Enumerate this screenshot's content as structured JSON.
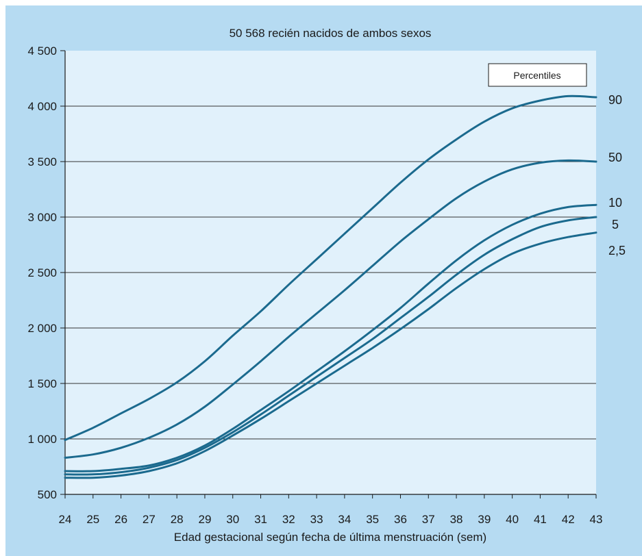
{
  "chart_data": {
    "type": "line",
    "title": "50 568 recién nacidos de ambos sexos",
    "xlabel": "Edad gestacional según fecha de última menstruación (sem)",
    "ylabel": "",
    "legend_title": "Percentiles",
    "legend_placement": "top-right",
    "grid": true,
    "colors": {
      "frame": "#b6dbf2",
      "plot": "#e1f1fb",
      "line": "#1b6a8e",
      "grid": "#333333"
    },
    "xlim": [
      24,
      43
    ],
    "ylim": [
      500,
      4500
    ],
    "x": [
      24,
      25,
      26,
      27,
      28,
      29,
      30,
      31,
      32,
      33,
      34,
      35,
      36,
      37,
      38,
      39,
      40,
      41,
      42,
      43
    ],
    "xticks": [
      "24",
      "25",
      "26",
      "27",
      "28",
      "29",
      "30",
      "31",
      "32",
      "33",
      "34",
      "35",
      "36",
      "37",
      "38",
      "39",
      "40",
      "41",
      "42",
      "43"
    ],
    "yticks": [
      {
        "value": 500,
        "label": "500"
      },
      {
        "value": 1000,
        "label": "1 000"
      },
      {
        "value": 1500,
        "label": "1 500"
      },
      {
        "value": 2000,
        "label": "2 000"
      },
      {
        "value": 2500,
        "label": "2 500"
      },
      {
        "value": 3000,
        "label": "3 000"
      },
      {
        "value": 3500,
        "label": "3 500"
      },
      {
        "value": 4000,
        "label": "4 000"
      },
      {
        "value": 4500,
        "label": "4 500"
      }
    ],
    "series": [
      {
        "name": "90",
        "values": [
          990,
          1100,
          1230,
          1360,
          1510,
          1700,
          1930,
          2150,
          2390,
          2620,
          2850,
          3080,
          3310,
          3520,
          3700,
          3860,
          3980,
          4050,
          4090,
          4080
        ]
      },
      {
        "name": "50",
        "values": [
          830,
          860,
          920,
          1010,
          1130,
          1290,
          1490,
          1700,
          1920,
          2130,
          2340,
          2560,
          2780,
          2980,
          3170,
          3320,
          3430,
          3490,
          3510,
          3500
        ]
      },
      {
        "name": "10",
        "values": [
          710,
          710,
          730,
          760,
          830,
          940,
          1090,
          1260,
          1430,
          1610,
          1790,
          1980,
          2180,
          2400,
          2610,
          2790,
          2930,
          3030,
          3090,
          3110
        ]
      },
      {
        "name": "5",
        "values": [
          680,
          680,
          700,
          740,
          810,
          920,
          1060,
          1220,
          1390,
          1560,
          1730,
          1900,
          2090,
          2280,
          2480,
          2660,
          2800,
          2910,
          2970,
          3000
        ]
      },
      {
        "name": "2,5",
        "values": [
          650,
          650,
          670,
          710,
          780,
          890,
          1030,
          1180,
          1340,
          1500,
          1660,
          1820,
          1990,
          2170,
          2360,
          2530,
          2670,
          2760,
          2820,
          2860
        ]
      }
    ]
  }
}
